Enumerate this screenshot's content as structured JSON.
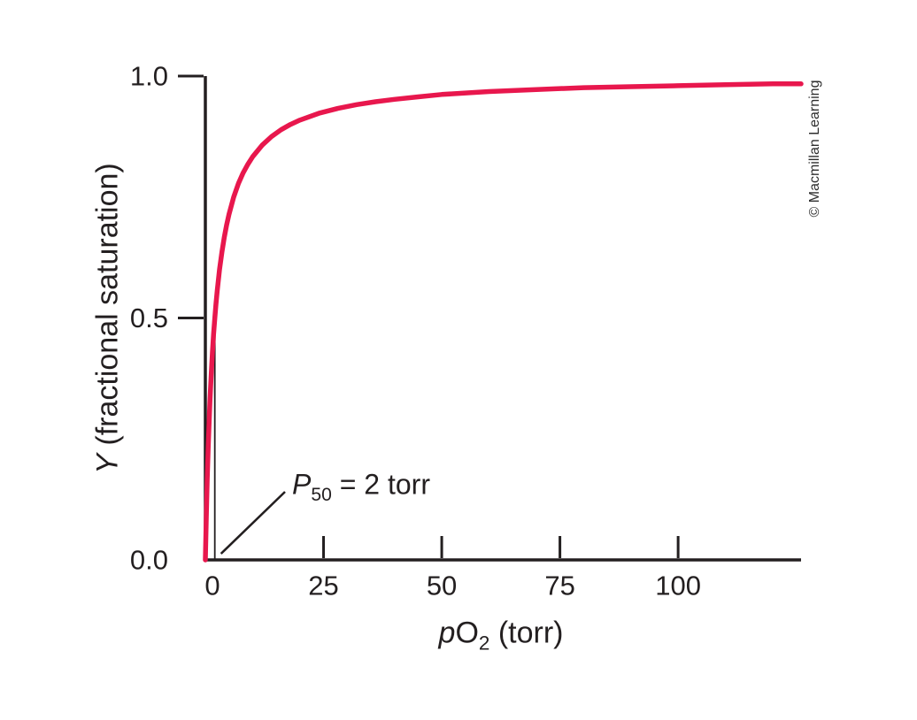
{
  "figure": {
    "credit": "© Macmillan Learning",
    "background": "#ffffff"
  },
  "chart_data": {
    "type": "line",
    "title": "",
    "xlabel": "pO2 (torr)",
    "ylabel": "Y (fractional saturation)",
    "xlabel_parts": {
      "italic": "p",
      "main": "O",
      "sub": "2",
      "rest": " (torr)"
    },
    "ylabel_parts": {
      "italic": "Y",
      "rest": " (fractional saturation)"
    },
    "xlim": [
      0,
      126
    ],
    "ylim": [
      0,
      1.0
    ],
    "x_ticks": [
      0,
      25,
      50,
      75,
      100
    ],
    "x_tick_labels": [
      "0",
      "25",
      "50",
      "75",
      "100"
    ],
    "y_ticks": [
      0,
      0.5,
      1.0
    ],
    "y_tick_labels": [
      "0.0",
      "0.5",
      "1.0"
    ],
    "grid": false,
    "legend": false,
    "axis_color": "#231f20",
    "series": [
      {
        "name": "fractional-saturation-curve",
        "color": "#e8174d",
        "p50_torr": 2,
        "points": [
          [
            0,
            0
          ],
          [
            0.2,
            0.091
          ],
          [
            0.4,
            0.167
          ],
          [
            0.6,
            0.231
          ],
          [
            0.8,
            0.286
          ],
          [
            1,
            0.333
          ],
          [
            1.25,
            0.385
          ],
          [
            1.5,
            0.429
          ],
          [
            1.75,
            0.467
          ],
          [
            2,
            0.5
          ],
          [
            2.25,
            0.529
          ],
          [
            2.5,
            0.556
          ],
          [
            3,
            0.6
          ],
          [
            3.5,
            0.636
          ],
          [
            4,
            0.667
          ],
          [
            4.5,
            0.692
          ],
          [
            5,
            0.714
          ],
          [
            6,
            0.75
          ],
          [
            7,
            0.778
          ],
          [
            8,
            0.8
          ],
          [
            9,
            0.818
          ],
          [
            10,
            0.833
          ],
          [
            12,
            0.857
          ],
          [
            14,
            0.875
          ],
          [
            16,
            0.889
          ],
          [
            18,
            0.9
          ],
          [
            20,
            0.909
          ],
          [
            24,
            0.923
          ],
          [
            28,
            0.933
          ],
          [
            32,
            0.941
          ],
          [
            36,
            0.947
          ],
          [
            40,
            0.952
          ],
          [
            45,
            0.957
          ],
          [
            50,
            0.962
          ],
          [
            60,
            0.968
          ],
          [
            70,
            0.972
          ],
          [
            80,
            0.976
          ],
          [
            90,
            0.978
          ],
          [
            100,
            0.98
          ],
          [
            110,
            0.982
          ],
          [
            120,
            0.984
          ],
          [
            126,
            0.984
          ]
        ]
      }
    ],
    "annotations": [
      {
        "text": "P50 = 2 torr",
        "label_parts": {
          "italic": "P",
          "sub": "50",
          "rest": " = 2 torr"
        },
        "points_to_x": 2
      }
    ],
    "reference_line": {
      "x": 2,
      "y_from": 0,
      "y_to": 0.5
    }
  }
}
